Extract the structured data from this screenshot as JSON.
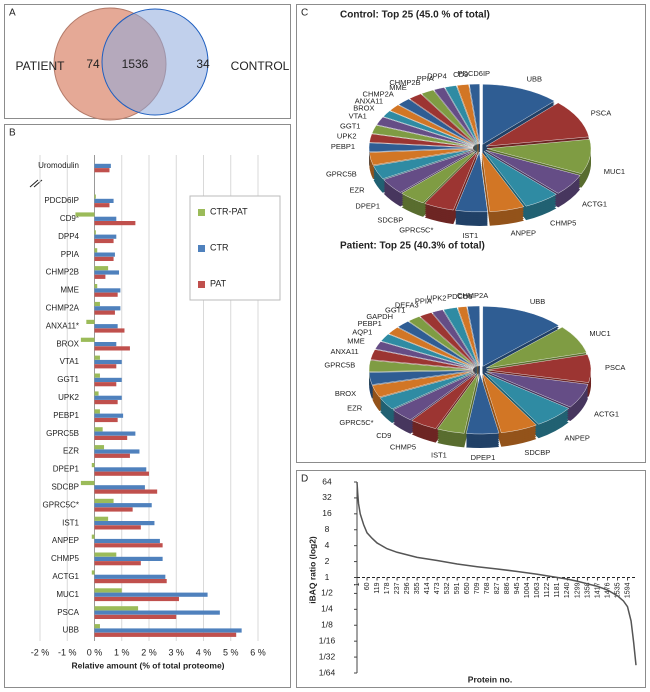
{
  "panels": [
    "A",
    "B",
    "C",
    "D"
  ],
  "chart_data": [
    {
      "type": "venn",
      "sets": [
        {
          "name": "PATIENT",
          "color": "#c0504d",
          "fill": "#e09a84"
        },
        {
          "name": "CONTROL",
          "color": "#1f5fc0",
          "fill": "#8eaadc"
        }
      ],
      "values": [
        74,
        1536,
        34
      ]
    },
    {
      "type": "bar",
      "orientation": "horizontal",
      "categories": [
        "Uromodulin",
        "PDCD6IP",
        "CD9*",
        "DPP4",
        "PPIA",
        "CHMP2B",
        "MME",
        "CHMP2A",
        "ANXA11*",
        "BROX",
        "VTA1",
        "GGT1",
        "UPK2",
        "PEBP1",
        "GPRC5B",
        "EZR",
        "DPEP1",
        "SDCBP",
        "GPRC5C*",
        "IST1",
        "ANPEP",
        "CHMP5",
        "ACTG1",
        "MUC1",
        "PSCA",
        "UBB"
      ],
      "series": [
        {
          "name": "CTR-PAT",
          "color": "#9bbb59",
          "values": [
            null,
            0.05,
            -0.7,
            0.05,
            0.1,
            0.5,
            0.1,
            0.2,
            -0.3,
            -0.5,
            0.2,
            0.2,
            0.15,
            0.2,
            0.3,
            0.35,
            -0.1,
            -0.5,
            0.7,
            0.5,
            -0.1,
            0.8,
            -0.1,
            1.0,
            1.6,
            0.2
          ]
        },
        {
          "name": "CTR",
          "color": "#4f81bd",
          "values": [
            0.6,
            0.7,
            0.8,
            0.8,
            0.75,
            0.9,
            0.95,
            0.95,
            0.85,
            0.8,
            1.0,
            1.0,
            1.0,
            1.05,
            1.5,
            1.65,
            1.9,
            1.85,
            2.1,
            2.2,
            2.4,
            2.5,
            2.6,
            4.15,
            4.6,
            5.4
          ]
        },
        {
          "name": "PAT",
          "color": "#c0504d",
          "values": [
            0.55,
            0.55,
            1.5,
            0.7,
            0.7,
            0.4,
            0.85,
            0.75,
            1.1,
            1.3,
            0.8,
            0.8,
            0.85,
            0.85,
            1.2,
            1.3,
            2.0,
            2.3,
            1.4,
            1.7,
            2.5,
            1.7,
            2.65,
            3.1,
            3.0,
            5.2
          ]
        }
      ],
      "xlim": [
        -2,
        6
      ],
      "xticks": [
        {
          "value": -2,
          "label": "-2 %"
        },
        {
          "value": -1,
          "label": "-1 %"
        },
        {
          "value": 0,
          "label": "0 %"
        },
        {
          "value": 1,
          "label": "1 %"
        },
        {
          "value": 2,
          "label": "2 %"
        },
        {
          "value": 3,
          "label": "3 %"
        },
        {
          "value": 4,
          "label": "4 %"
        },
        {
          "value": 5,
          "label": "5 %"
        },
        {
          "value": 6,
          "label": "6 %"
        }
      ],
      "xlabel": "Relative amount (% of total proteome)",
      "grid": true,
      "legend": "right"
    },
    {
      "type": "pie",
      "title": "Control: Top 25 (45.0 % of total)",
      "categories": [
        "UBB",
        "PSCA",
        "MUC1",
        "ACTG1",
        "CHMP5",
        "ANPEP",
        "IST1",
        "GPRC5C*",
        "SDCBP",
        "DPEP1",
        "EZR",
        "GPRC5B",
        "PEBP1",
        "UPK2",
        "GGT1",
        "VTA1",
        "BROX",
        "ANXA11",
        "CHMP2A",
        "MME",
        "CHMP2B",
        "PPIA",
        "DPP4",
        "CD9",
        "PDCD6IP"
      ],
      "values": [
        5.4,
        4.6,
        4.15,
        2.6,
        2.5,
        2.4,
        2.2,
        2.1,
        1.85,
        1.9,
        1.65,
        1.5,
        1.05,
        1.0,
        1.0,
        1.0,
        0.8,
        0.85,
        0.95,
        0.95,
        0.9,
        0.75,
        0.8,
        0.8,
        0.7
      ],
      "colors": [
        "#2f5d93",
        "#9c3532",
        "#7f9c43",
        "#654d86",
        "#2f8ba3",
        "#d27625"
      ]
    },
    {
      "type": "pie",
      "title": "Patient: Top 25 (40.3% of total)",
      "categories": [
        "UBB",
        "MUC1",
        "PSCA",
        "ACTG1",
        "ANPEP",
        "SDCBP",
        "DPEP1",
        "IST1",
        "CHMP5",
        "CD9",
        "GPRC5C*",
        "EZR",
        "BROX",
        "GPRC5B",
        "ANXA11",
        "MME",
        "AQP1",
        "PEBP1",
        "GAPDH",
        "GGT1",
        "DEFA3",
        "PPIA",
        "UPK2",
        "PDCD6",
        "CHMP2A"
      ],
      "values": [
        5.2,
        3.1,
        3.0,
        2.65,
        2.5,
        2.3,
        2.0,
        1.7,
        1.7,
        1.5,
        1.4,
        1.3,
        1.3,
        1.2,
        1.1,
        0.85,
        0.85,
        0.85,
        0.85,
        0.8,
        0.8,
        0.7,
        0.85,
        0.55,
        0.75
      ],
      "colors": [
        "#2f5d93",
        "#7f9c43",
        "#9c3532",
        "#654d86",
        "#2f8ba3",
        "#d27625"
      ]
    },
    {
      "type": "line",
      "color": "#555555",
      "x": [
        1,
        5,
        10,
        20,
        40,
        60,
        90,
        119,
        178,
        237,
        355,
        473,
        591,
        709,
        827,
        945,
        1063,
        1181,
        1240,
        1299,
        1358,
        1417,
        1476,
        1535,
        1570,
        1594,
        1615,
        1630,
        1644
      ],
      "values": [
        64,
        40,
        25,
        16,
        10,
        7,
        5.5,
        4.5,
        3.5,
        3,
        2.4,
        2.1,
        1.8,
        1.6,
        1.45,
        1.3,
        1.15,
        1.0,
        0.93,
        0.85,
        0.76,
        0.68,
        0.58,
        0.45,
        0.36,
        0.28,
        0.15,
        0.06,
        0.022
      ],
      "xlim": [
        1,
        1644
      ],
      "xticks": [
        1,
        60,
        119,
        178,
        237,
        296,
        355,
        414,
        473,
        532,
        591,
        650,
        709,
        768,
        827,
        886,
        945,
        1004,
        1063,
        1122,
        1181,
        1240,
        1299,
        1358,
        1417,
        1476,
        1535,
        1594
      ],
      "yscale": "log2",
      "ylim": [
        0.015625,
        64
      ],
      "yticks": [
        64,
        32,
        16,
        8,
        4,
        2,
        1,
        {
          "value": 0.5,
          "label": "1/2"
        },
        {
          "value": 0.25,
          "label": "1/4"
        },
        {
          "value": 0.125,
          "label": "1/8"
        },
        {
          "value": 0.0625,
          "label": "1/16"
        },
        {
          "value": 0.03125,
          "label": "1/32"
        },
        {
          "value": 0.015625,
          "label": "1/64"
        }
      ],
      "hline": 1,
      "ylabel": "iBAQ ratio (log2)",
      "xlabel": "Protein no."
    }
  ]
}
